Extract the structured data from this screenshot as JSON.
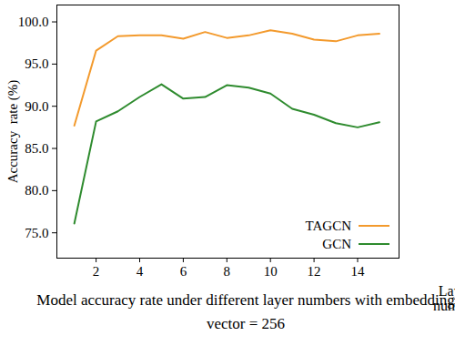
{
  "chart_data": {
    "type": "line",
    "title": "Model accuracy rate under different layer numbers with embedding vector = 256",
    "x_label": "Layer number",
    "y_label": "Accuracy  rate (%)",
    "x": [
      1,
      2,
      3,
      4,
      5,
      6,
      7,
      8,
      9,
      10,
      11,
      12,
      13,
      14,
      15
    ],
    "series": [
      {
        "name": "TAGCN",
        "color": "#f39a2d",
        "values": [
          87.7,
          96.6,
          98.3,
          98.4,
          98.4,
          98.0,
          98.8,
          98.1,
          98.4,
          99.0,
          98.6,
          97.9,
          97.7,
          98.4,
          98.6
        ]
      },
      {
        "name": "GCN",
        "color": "#2e8b2e",
        "values": [
          76.1,
          88.2,
          89.4,
          91.1,
          92.6,
          90.9,
          91.1,
          92.5,
          92.2,
          91.5,
          89.7,
          89.0,
          88.0,
          87.5,
          88.1
        ]
      }
    ],
    "xlim": [
      0.2,
      15.9
    ],
    "xticks": [
      2,
      4,
      6,
      8,
      10,
      12,
      14
    ],
    "ylim": [
      72,
      102
    ],
    "yticks": [
      {
        "value": 75,
        "label": "75.0"
      },
      {
        "value": 80,
        "label": "80.0"
      },
      {
        "value": 85,
        "label": "85.0"
      },
      {
        "value": 90,
        "label": "90.0"
      },
      {
        "value": 95,
        "label": "95.0"
      },
      {
        "value": 100,
        "label": "100.0"
      }
    ],
    "grid": false,
    "legend": "lower right"
  }
}
